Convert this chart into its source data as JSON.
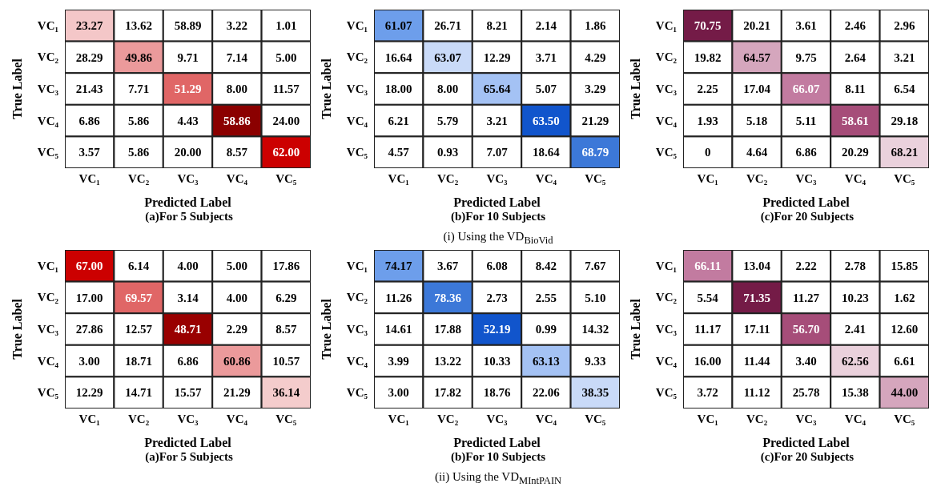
{
  "chart_data": [
    {
      "type": "heatmap",
      "title": "(a)For 5 Subjects",
      "xlabel": "Predicted Label",
      "ylabel": "True Label",
      "categories": [
        "VC₁",
        "VC₂",
        "VC₃",
        "VC₄",
        "VC₅"
      ],
      "y_categories": [
        "VC₁",
        "VC₂",
        "VC₃",
        "VC₄",
        "VC₅"
      ],
      "cells": [
        [
          23.27,
          13.62,
          58.89,
          3.22,
          1.01
        ],
        [
          28.29,
          49.86,
          9.71,
          7.14,
          5.0
        ],
        [
          21.43,
          7.71,
          51.29,
          8.0,
          11.57
        ],
        [
          6.86,
          5.86,
          4.43,
          58.86,
          24.0
        ],
        [
          3.57,
          5.86,
          20.0,
          8.57,
          62.0
        ]
      ],
      "cell_labels": [
        [
          "23.27",
          "13.62",
          "58.89",
          "3.22",
          "1.01"
        ],
        [
          "28.29",
          "49.86",
          "9.71",
          "7.14",
          "5.00"
        ],
        [
          "21.43",
          "7.71",
          "51.29",
          "8.00",
          "11.57"
        ],
        [
          "6.86",
          "5.86",
          "4.43",
          "58.86",
          "24.00"
        ],
        [
          "3.57",
          "5.86",
          "20.00",
          "8.57",
          "62.00"
        ]
      ],
      "colors": [
        [
          "#f4c7c8",
          "#ffffff",
          "#ffffff",
          "#ffffff",
          "#ffffff"
        ],
        [
          "#ffffff",
          "#eb9a9b",
          "#ffffff",
          "#ffffff",
          "#ffffff"
        ],
        [
          "#ffffff",
          "#ffffff",
          "#e06666",
          "#ffffff",
          "#ffffff"
        ],
        [
          "#ffffff",
          "#ffffff",
          "#ffffff",
          "#8b0000",
          "#ffffff"
        ],
        [
          "#ffffff",
          "#ffffff",
          "#ffffff",
          "#ffffff",
          "#cc0000"
        ]
      ]
    },
    {
      "type": "heatmap",
      "title": "(b)For 10 Subjects",
      "xlabel": "Predicted Label",
      "ylabel": "True Label",
      "annotations": [
        "(i) Using the VD$_{BioVid}$"
      ],
      "categories": [
        "VC₁",
        "VC₂",
        "VC₃",
        "VC₄",
        "VC₅"
      ],
      "y_categories": [
        "VC₁",
        "VC₂",
        "VC₃",
        "VC₄",
        "VC₅"
      ],
      "cells": [
        [
          61.07,
          26.71,
          8.21,
          2.14,
          1.86
        ],
        [
          16.64,
          63.07,
          12.29,
          3.71,
          4.29
        ],
        [
          18.0,
          8.0,
          65.64,
          5.07,
          3.29
        ],
        [
          6.21,
          5.79,
          3.21,
          63.5,
          21.29
        ],
        [
          4.57,
          0.93,
          7.07,
          18.64,
          68.79
        ]
      ],
      "cell_labels": [
        [
          "61.07",
          "26.71",
          "8.21",
          "2.14",
          "1.86"
        ],
        [
          "16.64",
          "63.07",
          "12.29",
          "3.71",
          "4.29"
        ],
        [
          "18.00",
          "8.00",
          "65.64",
          "5.07",
          "3.29"
        ],
        [
          "6.21",
          "5.79",
          "3.21",
          "63.50",
          "21.29"
        ],
        [
          "4.57",
          "0.93",
          "7.07",
          "18.64",
          "68.79"
        ]
      ],
      "colors": [
        [
          "#6d9eeb",
          "#ffffff",
          "#ffffff",
          "#ffffff",
          "#ffffff"
        ],
        [
          "#ffffff",
          "#c9daf8",
          "#ffffff",
          "#ffffff",
          "#ffffff"
        ],
        [
          "#ffffff",
          "#ffffff",
          "#a4c2f4",
          "#ffffff",
          "#ffffff"
        ],
        [
          "#ffffff",
          "#ffffff",
          "#ffffff",
          "#1155cc",
          "#ffffff"
        ],
        [
          "#ffffff",
          "#ffffff",
          "#ffffff",
          "#ffffff",
          "#3c78d8"
        ]
      ]
    },
    {
      "type": "heatmap",
      "title": "(c)For 20 Subjects",
      "xlabel": "Predicted Label",
      "ylabel": "True Label",
      "categories": [
        "VC₁",
        "VC₂",
        "VC₃",
        "VC₄",
        "VC₅"
      ],
      "y_categories": [
        "VC₁",
        "VC₂",
        "VC₃",
        "VC₄",
        "VC₅"
      ],
      "data_labels": true,
      "cells": [
        [
          70.75,
          20.21,
          3.61,
          2.46,
          2.96
        ],
        [
          19.82,
          64.57,
          9.75,
          2.64,
          3.21
        ],
        [
          2.25,
          17.04,
          66.07,
          8.11,
          6.54
        ],
        [
          1.93,
          5.18,
          5.11,
          58.61,
          29.18
        ],
        [
          0,
          4.64,
          6.86,
          20.29,
          68.21
        ]
      ],
      "colors": [
        [
          "#741b47",
          "#ffffff",
          "#ffffff",
          "#ffffff",
          "#ffffff"
        ],
        [
          "#ffffff",
          "#d5a6bd",
          "#ffffff",
          "#ffffff",
          "#ffffff"
        ],
        [
          "#ffffff",
          "#ffffff",
          "#c27ba0",
          "#ffffff",
          "#ffffff"
        ],
        [
          "#ffffff",
          "#ffffff",
          "#ffffff",
          "#a64d79",
          "#ffffff"
        ],
        [
          "#ffffff",
          "#ffffff",
          "#ffffff",
          "#ffffff",
          "#ead1dc"
        ]
      ]
    },
    {
      "type": "heatmap",
      "title": "(a)For 5 Subjects",
      "xlabel": "Predicted Label",
      "ylabel": "True Label",
      "categories": [
        "VC₁",
        "VC₂",
        "VC₃",
        "VC₄",
        "VC₅"
      ],
      "y_categories": [
        "VC₁",
        "VC₂",
        "VC₃",
        "VC₄",
        "VC₅"
      ],
      "cells": [
        [
          67.0,
          6.14,
          4.0,
          5.0,
          17.86
        ],
        [
          17.0,
          69.57,
          3.14,
          4.0,
          6.29
        ],
        [
          27.86,
          12.57,
          48.71,
          2.29,
          8.57
        ],
        [
          3.0,
          18.71,
          6.86,
          60.86,
          10.57
        ],
        [
          12.29,
          14.71,
          15.57,
          21.29,
          36.14
        ]
      ],
      "cell_labels": [
        [
          "67.00",
          "6.14",
          "4.00",
          "5.00",
          "17.86"
        ],
        [
          "17.00",
          "69.57",
          "3.14",
          "4.00",
          "6.29"
        ],
        [
          "27.86",
          "12.57",
          "48.71",
          "2.29",
          "8.57"
        ],
        [
          "3.00",
          "18.71",
          "6.86",
          "60.86",
          "10.57"
        ],
        [
          "12.29",
          "14.71",
          "15.57",
          "21.29",
          "36.14"
        ]
      ],
      "colors": [
        [
          "#cc0000",
          "#ffffff",
          "#ffffff",
          "#ffffff",
          "#ffffff"
        ],
        [
          "#ffffff",
          "#e06666",
          "#ffffff",
          "#ffffff",
          "#ffffff"
        ],
        [
          "#ffffff",
          "#ffffff",
          "#990000",
          "#ffffff",
          "#ffffff"
        ],
        [
          "#ffffff",
          "#ffffff",
          "#ffffff",
          "#eb9a9b",
          "#ffffff"
        ],
        [
          "#ffffff",
          "#ffffff",
          "#ffffff",
          "#ffffff",
          "#f4cccc"
        ]
      ]
    },
    {
      "type": "heatmap",
      "title": "(b)For 10 Subjects",
      "xlabel": "Predicted Label",
      "ylabel": "True Label",
      "annotations": [
        "(ii) Using the VD$_{MIntPAIN}$"
      ],
      "categories": [
        "VC₁",
        "VC₂",
        "VC₃",
        "VC₄",
        "VC₅"
      ],
      "y_categories": [
        "VC₁",
        "VC₂",
        "VC₃",
        "VC₄",
        "VC₅"
      ],
      "cells": [
        [
          74.17,
          3.67,
          6.08,
          8.42,
          7.67
        ],
        [
          11.26,
          78.36,
          2.73,
          2.55,
          5.1
        ],
        [
          14.61,
          17.88,
          52.19,
          0.99,
          14.32
        ],
        [
          3.99,
          13.22,
          10.33,
          63.13,
          9.33
        ],
        [
          3.0,
          17.82,
          18.76,
          22.06,
          38.35
        ]
      ],
      "cell_labels": [
        [
          "74.17",
          "3.67",
          "6.08",
          "8.42",
          "7.67"
        ],
        [
          "11.26",
          "78.36",
          "2.73",
          "2.55",
          "5.10"
        ],
        [
          "14.61",
          "17.88",
          "52.19",
          "0.99",
          "14.32"
        ],
        [
          "3.99",
          "13.22",
          "10.33",
          "63.13",
          "9.33"
        ],
        [
          "3.00",
          "17.82",
          "18.76",
          "22.06",
          "38.35"
        ]
      ],
      "colors": [
        [
          "#6d9eeb",
          "#ffffff",
          "#ffffff",
          "#ffffff",
          "#ffffff"
        ],
        [
          "#ffffff",
          "#3c78d8",
          "#ffffff",
          "#ffffff",
          "#ffffff"
        ],
        [
          "#ffffff",
          "#ffffff",
          "#1155cc",
          "#ffffff",
          "#ffffff"
        ],
        [
          "#ffffff",
          "#ffffff",
          "#ffffff",
          "#a4c2f4",
          "#ffffff"
        ],
        [
          "#ffffff",
          "#ffffff",
          "#ffffff",
          "#ffffff",
          "#c9daf8"
        ]
      ]
    },
    {
      "type": "heatmap",
      "title": "(c)For 20 Subjects",
      "xlabel": "Predicted Label",
      "ylabel": "True Label",
      "categories": [
        "VC₁",
        "VC₂",
        "VC₃",
        "VC₄",
        "VC₅"
      ],
      "y_categories": [
        "VC₁",
        "VC₂",
        "VC₃",
        "VC₄",
        "VC₅"
      ],
      "cells": [
        [
          66.11,
          13.04,
          2.22,
          2.78,
          15.85
        ],
        [
          5.54,
          71.35,
          11.27,
          10.23,
          1.62
        ],
        [
          11.17,
          17.11,
          56.7,
          2.41,
          12.6
        ],
        [
          16.0,
          11.44,
          3.4,
          62.56,
          6.61
        ],
        [
          3.72,
          11.12,
          25.78,
          15.38,
          44.0
        ]
      ],
      "cell_labels": [
        [
          "66.11",
          "13.04",
          "2.22",
          "2.78",
          "15.85"
        ],
        [
          "5.54",
          "71.35",
          "11.27",
          "10.23",
          "1.62"
        ],
        [
          "11.17",
          "17.11",
          "56.70",
          "2.41",
          "12.60"
        ],
        [
          "16.00",
          "11.44",
          "3.40",
          "62.56",
          "6.61"
        ],
        [
          "3.72",
          "11.12",
          "25.78",
          "15.38",
          "44.00"
        ]
      ],
      "colors": [
        [
          "#c27ba0",
          "#ffffff",
          "#ffffff",
          "#ffffff",
          "#ffffff"
        ],
        [
          "#ffffff",
          "#741b47",
          "#ffffff",
          "#ffffff",
          "#ffffff"
        ],
        [
          "#ffffff",
          "#ffffff",
          "#a64d79",
          "#ffffff",
          "#ffffff"
        ],
        [
          "#ffffff",
          "#ffffff",
          "#ffffff",
          "#ead1dc",
          "#ffffff"
        ],
        [
          "#ffffff",
          "#ffffff",
          "#ffffff",
          "#ffffff",
          "#d5a6bd"
        ]
      ]
    }
  ]
}
